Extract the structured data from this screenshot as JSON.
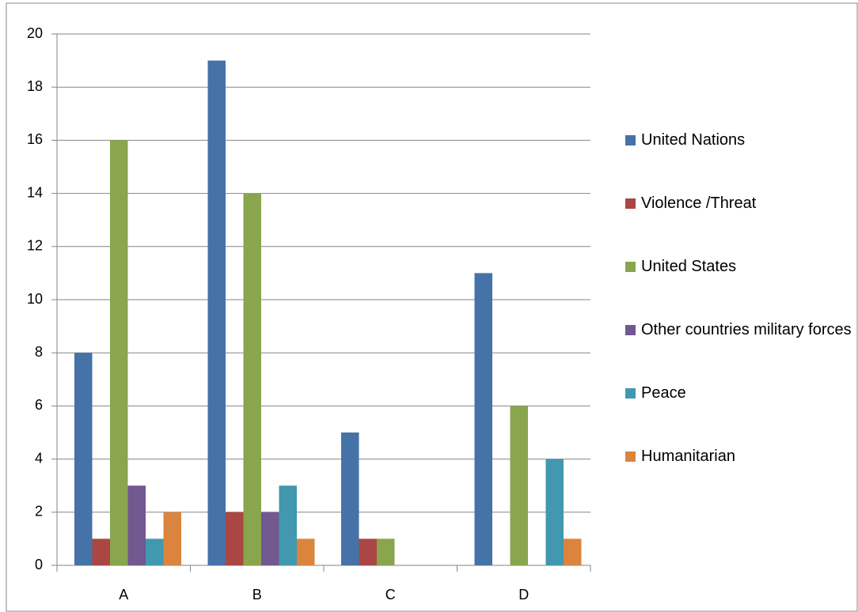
{
  "chart_data": {
    "type": "bar",
    "categories": [
      "A",
      "B",
      "C",
      "D"
    ],
    "series": [
      {
        "name": "United Nations",
        "color": "#4572a7",
        "values": [
          8,
          19,
          5,
          11
        ]
      },
      {
        "name": "Violence /Threat",
        "color": "#aa4643",
        "values": [
          1,
          2,
          1,
          0
        ]
      },
      {
        "name": "United States",
        "color": "#89a54e",
        "values": [
          16,
          14,
          1,
          6
        ]
      },
      {
        "name": "Other countries military forces",
        "color": "#71588f",
        "values": [
          3,
          2,
          0,
          0
        ]
      },
      {
        "name": "Peace",
        "color": "#4198af",
        "values": [
          1,
          3,
          0,
          4
        ]
      },
      {
        "name": "Humanitarian",
        "color": "#db843d",
        "values": [
          2,
          1,
          0,
          1
        ]
      }
    ],
    "ylim": [
      0,
      20
    ],
    "yticks": [
      0,
      2,
      4,
      6,
      8,
      10,
      12,
      14,
      16,
      18,
      20
    ],
    "grid": true,
    "legend": "right"
  }
}
